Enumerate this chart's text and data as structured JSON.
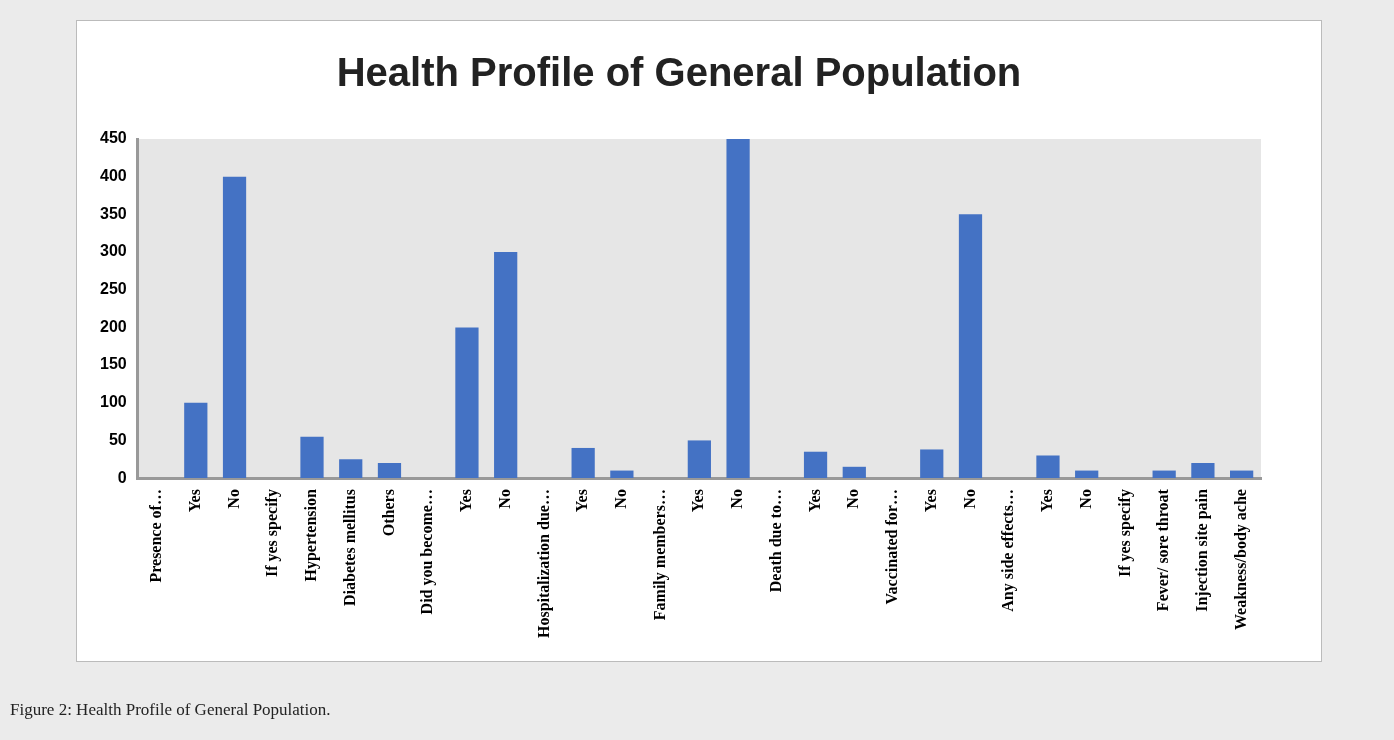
{
  "chart_data": {
    "type": "bar",
    "title": "Health Profile of General Population",
    "categories": [
      "Presence of…",
      "Yes",
      "No",
      "If yes specify",
      "Hypertension",
      "Diabetes mellitus",
      "Others",
      "Did you become…",
      "Yes",
      "No",
      "Hospitalization due…",
      "Yes",
      "No",
      "Family members…",
      "Yes",
      "No",
      "Death due to…",
      "Yes",
      "No",
      "Vaccinated for…",
      "Yes",
      "No",
      "Any side effects…",
      "Yes",
      "No",
      "If yes specify",
      "Fever/ sore throat",
      "Injection site pain",
      "Weakness/body ache"
    ],
    "values": [
      0,
      100,
      400,
      0,
      55,
      25,
      20,
      0,
      200,
      300,
      0,
      40,
      10,
      0,
      50,
      450,
      0,
      35,
      15,
      0,
      38,
      350,
      0,
      30,
      10,
      0,
      10,
      20,
      10
    ],
    "color": "#4472c4",
    "ylim": [
      0,
      450
    ],
    "yticks": [
      0,
      50,
      100,
      150,
      200,
      250,
      300,
      350,
      400,
      450
    ],
    "grid": false,
    "legend": false,
    "annotations": [
      "Figure 2: Health Profile of General Population."
    ]
  }
}
